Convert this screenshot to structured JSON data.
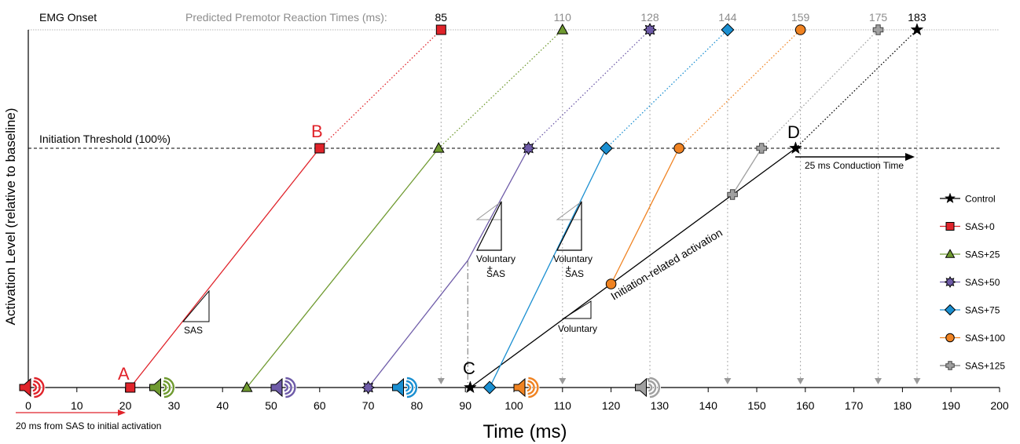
{
  "chart_data": {
    "type": "line",
    "title": "",
    "xlabel": "Time (ms)",
    "ylabel": "Activation Level (relative to baseline)",
    "xlim": [
      0,
      200
    ],
    "xticks": [
      0,
      10,
      20,
      30,
      40,
      50,
      60,
      70,
      80,
      90,
      100,
      110,
      120,
      130,
      140,
      150,
      160,
      170,
      180,
      190,
      200
    ],
    "level_names": {
      "baseline": "Baseline",
      "threshold": "Initiation Threshold (100%)",
      "onset": "EMG Onset"
    },
    "top_label": "Predicted Premotor Reaction Times (ms):",
    "colors": {
      "control": "#000000",
      "sas0": "#e0232a",
      "sas25": "#6f9a30",
      "sas50": "#6e5ba8",
      "sas75": "#1a8fd1",
      "sas100": "#f08322",
      "sas125": "#a0a0a0"
    },
    "series": [
      {
        "name": "Control",
        "key": "control",
        "color": "#000000",
        "marker": "star",
        "points": [
          {
            "x": 91,
            "level": "baseline"
          },
          {
            "x": 158,
            "level": "threshold"
          },
          {
            "x": 183,
            "level": "onset"
          }
        ],
        "rt_label": "183"
      },
      {
        "name": "SAS+0",
        "key": "sas0",
        "color": "#e0232a",
        "marker": "square",
        "points": [
          {
            "x": 21,
            "level": "baseline"
          },
          {
            "x": 60,
            "level": "threshold"
          },
          {
            "x": 85,
            "level": "onset"
          }
        ],
        "rt_label": "85"
      },
      {
        "name": "SAS+25",
        "key": "sas25",
        "color": "#6f9a30",
        "marker": "triangle",
        "points": [
          {
            "x": 45,
            "level": "baseline"
          },
          {
            "x": 84.5,
            "level": "threshold"
          },
          {
            "x": 110,
            "level": "onset"
          }
        ],
        "rt_label": "110"
      },
      {
        "name": "SAS+50",
        "key": "sas50",
        "color": "#6e5ba8",
        "marker": "burst",
        "points": [
          {
            "x": 70,
            "level": "baseline"
          },
          {
            "x": 103,
            "level": "threshold"
          },
          {
            "x": 128,
            "level": "onset"
          }
        ],
        "rt_label": "128"
      },
      {
        "name": "SAS+75",
        "key": "sas75",
        "color": "#1a8fd1",
        "marker": "diamond",
        "points": [
          {
            "x": 95,
            "level": "baseline"
          },
          {
            "x": 119,
            "level": "threshold"
          },
          {
            "x": 144,
            "level": "onset"
          }
        ],
        "rt_label": "144"
      },
      {
        "name": "SAS+100",
        "key": "sas100",
        "color": "#f08322",
        "marker": "circle",
        "points": [
          {
            "x": 120,
            "level": "mid"
          },
          {
            "x": 134,
            "level": "threshold"
          },
          {
            "x": 159,
            "level": "onset"
          }
        ],
        "rt_label": "159"
      },
      {
        "name": "SAS+125",
        "key": "sas125",
        "color": "#a0a0a0",
        "marker": "plus",
        "points": [
          {
            "x": 145,
            "level": "upper"
          },
          {
            "x": 151,
            "level": "threshold"
          },
          {
            "x": 175,
            "level": "onset"
          }
        ],
        "rt_label": "175"
      }
    ],
    "speakers": [
      {
        "x": 0,
        "color": "#e0232a"
      },
      {
        "x": 25,
        "color": "#6f9a30"
      },
      {
        "x": 50,
        "color": "#6e5ba8"
      },
      {
        "x": 75,
        "color": "#1a8fd1"
      },
      {
        "x": 100,
        "color": "#f08322"
      },
      {
        "x": 125,
        "color": "#a0a0a0"
      }
    ],
    "rt_arrows_x": [
      85,
      110,
      128,
      144,
      159,
      175,
      183
    ],
    "annotations": {
      "point_a": "A",
      "point_b": "B",
      "point_c": "C",
      "point_d": "D",
      "sas_slope": "SAS",
      "voluntary_sas_1_top": "Voluntary",
      "voluntary_sas_1_plus": "+",
      "voluntary_sas_1_bottom": "SAS",
      "voluntary_sas_2_top": "Voluntary",
      "voluntary_sas_2_plus": "+",
      "voluntary_sas_2_bottom": "SAS",
      "voluntary": "Voluntary",
      "initiation_activation": "Initiation-related activation",
      "conduction_time": "25 ms Conduction Time",
      "sas_to_activation": "20 ms from SAS to initial activation"
    }
  }
}
